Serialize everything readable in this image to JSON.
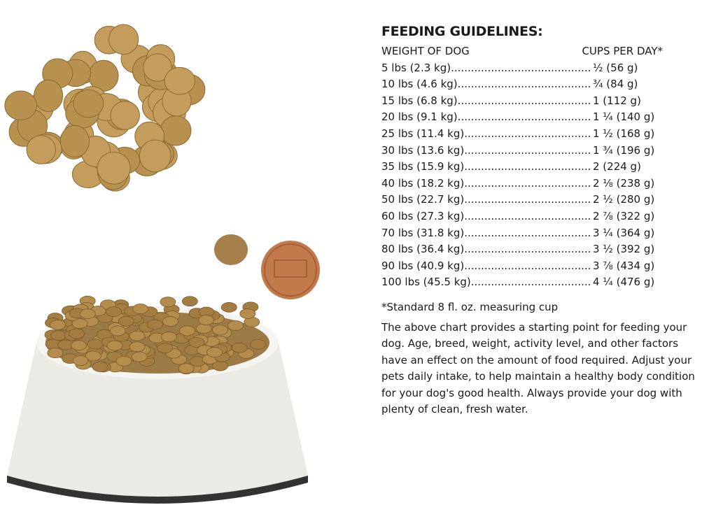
{
  "guidelines": {
    "title": "FEEDING GUIDELINES:",
    "col_weight": "WEIGHT OF DOG",
    "col_cups": "CUPS PER DAY*",
    "rows": [
      {
        "weight": "5 lbs (2.3 kg)",
        "cups": "½ (56 g)"
      },
      {
        "weight": "10 lbs (4.6 kg)",
        "cups": "¾ (84 g)"
      },
      {
        "weight": "15 lbs (6.8 kg)",
        "cups": "1 (112 g)"
      },
      {
        "weight": "20 lbs (9.1 kg)",
        "cups": "1 ¼ (140 g)"
      },
      {
        "weight": "25 lbs (11.4 kg)",
        "cups": "1 ½ (168 g)"
      },
      {
        "weight": "30 lbs (13.6 kg)",
        "cups": "1 ¾ (196 g)"
      },
      {
        "weight": "35 lbs (15.9 kg)",
        "cups": "2 (224 g)"
      },
      {
        "weight": "40 lbs (18.2 kg)",
        "cups": "2 ⅛ (238 g)"
      },
      {
        "weight": "50 lbs (22.7 kg)",
        "cups": "2 ½ (280 g)"
      },
      {
        "weight": "60 lbs (27.3 kg)",
        "cups": "2 ⅞ (322 g)"
      },
      {
        "weight": "70 lbs (31.8 kg)",
        "cups": "3 ¼ (364 g)"
      },
      {
        "weight": "80 lbs (36.4 kg)",
        "cups": "3 ½ (392 g)"
      },
      {
        "weight": "90 lbs (40.9 kg)",
        "cups": "3 ⅞ (434 g)"
      },
      {
        "weight": "100 lbs (45.5 kg)",
        "cups": "4 ¼ (476 g)"
      }
    ],
    "footnote": "*Standard 8 fl. oz. measuring cup",
    "description": "The above chart provides a starting point for feeding your dog. Age, breed, weight, activity level, and other factors have an effect on the amount of food required. Adjust your pets daily intake, to help maintain a healthy body condition for your dog's good health. Always provide your dog with plenty of clean, fresh water."
  },
  "colors": {
    "kibble": "#b8914f",
    "kibble_dark": "#8c6a33",
    "bowl": "#ecebe6",
    "penny": "#c27a4a"
  }
}
